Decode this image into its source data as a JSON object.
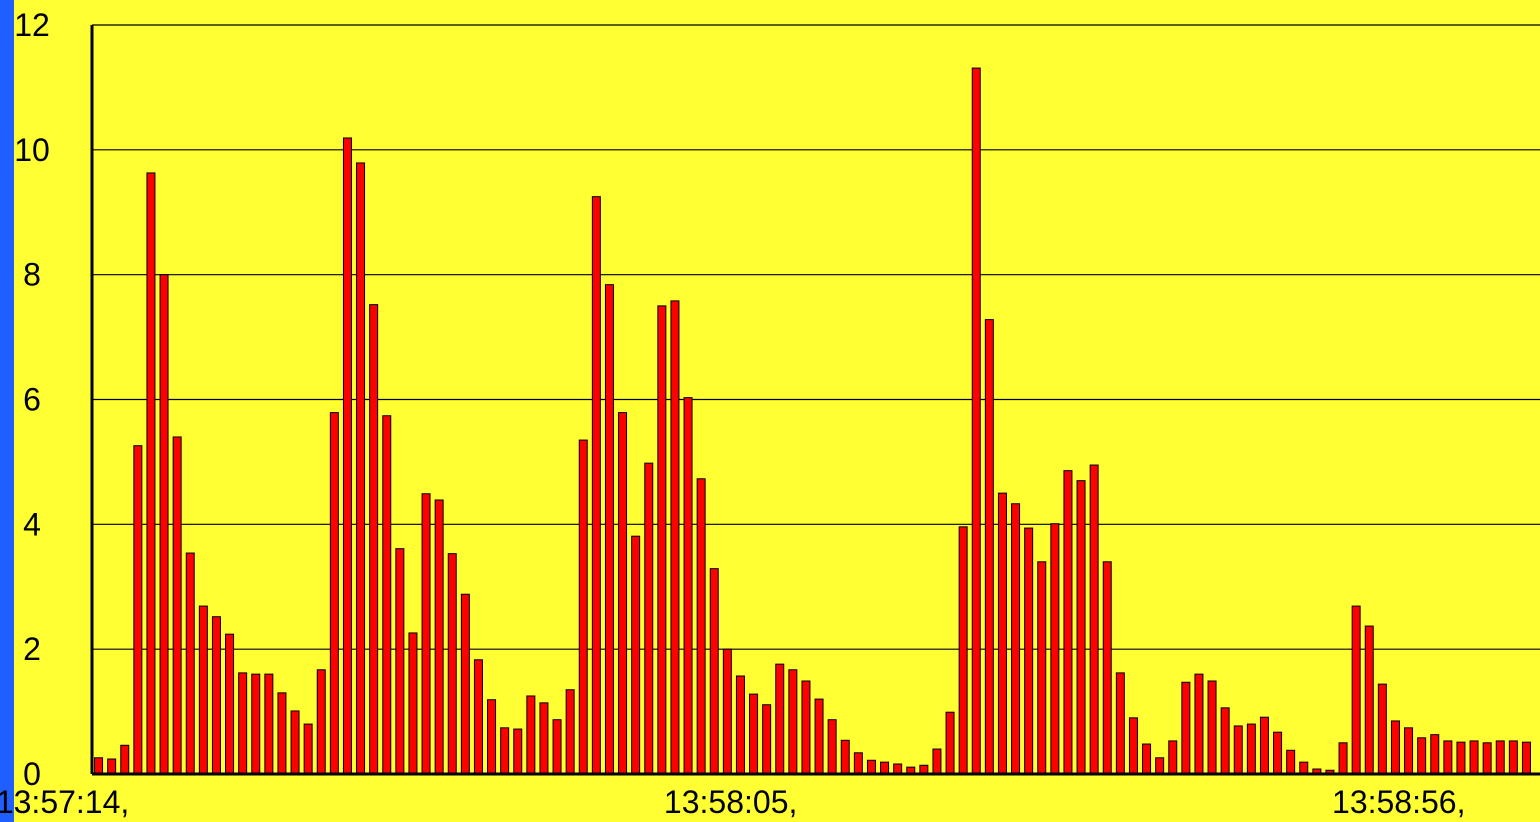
{
  "chart_data": {
    "type": "bar",
    "categories": [
      "13:57:14,",
      null,
      null,
      null,
      null,
      null,
      null,
      null,
      null,
      null,
      null,
      null,
      null,
      null,
      null,
      null,
      null,
      null,
      null,
      null,
      null,
      null,
      null,
      null,
      null,
      null,
      null,
      null,
      null,
      null,
      null,
      null,
      null,
      null,
      null,
      null,
      null,
      null,
      null,
      null,
      null,
      null,
      null,
      null,
      null,
      null,
      null,
      null,
      null,
      null,
      null,
      "13:58:05,",
      null,
      null,
      null,
      null,
      null,
      null,
      null,
      null,
      null,
      null,
      null,
      null,
      null,
      null,
      null,
      null,
      null,
      null,
      null,
      null,
      null,
      null,
      null,
      null,
      null,
      null,
      null,
      null,
      null,
      null,
      null,
      null,
      null,
      null,
      null,
      null,
      null,
      null,
      null,
      null,
      null,
      null,
      null,
      null,
      null,
      null,
      null,
      null,
      null,
      null,
      "13:58:56,",
      null,
      null,
      null,
      null,
      null,
      null,
      null
    ],
    "values": [
      0.26,
      0.24,
      0.46,
      5.26,
      9.63,
      8.0,
      5.4,
      3.54,
      2.69,
      2.52,
      2.24,
      1.62,
      1.6,
      1.6,
      1.3,
      1.01,
      0.8,
      1.67,
      5.79,
      10.19,
      9.79,
      7.52,
      5.74,
      3.61,
      2.26,
      4.49,
      4.39,
      3.53,
      2.88,
      1.83,
      1.19,
      0.74,
      0.72,
      1.25,
      1.14,
      0.87,
      1.35,
      5.35,
      9.25,
      7.84,
      5.79,
      3.81,
      4.98,
      7.5,
      7.58,
      6.03,
      4.73,
      3.29,
      2.0,
      1.57,
      1.28,
      1.11,
      1.76,
      1.67,
      1.49,
      1.2,
      0.87,
      0.54,
      0.34,
      0.22,
      0.19,
      0.16,
      0.11,
      0.14,
      0.4,
      0.99,
      3.96,
      11.31,
      7.28,
      4.5,
      4.33,
      3.94,
      3.4,
      4.01,
      4.86,
      4.7,
      4.95,
      3.4,
      1.62,
      0.9,
      0.48,
      0.26,
      0.53,
      1.47,
      1.6,
      1.49,
      1.06,
      0.77,
      0.8,
      0.91,
      0.67,
      0.38,
      0.19,
      0.08,
      0.06,
      0.5,
      2.69,
      2.37,
      1.44,
      0.85,
      0.74,
      0.58,
      0.63,
      0.53,
      0.51,
      0.53,
      0.5,
      0.53,
      0.53,
      0.51
    ],
    "color": "#ff0000",
    "ylim": [
      0,
      12
    ],
    "yticks": [
      0,
      2,
      4,
      6,
      8,
      10,
      12
    ],
    "grid": true
  }
}
